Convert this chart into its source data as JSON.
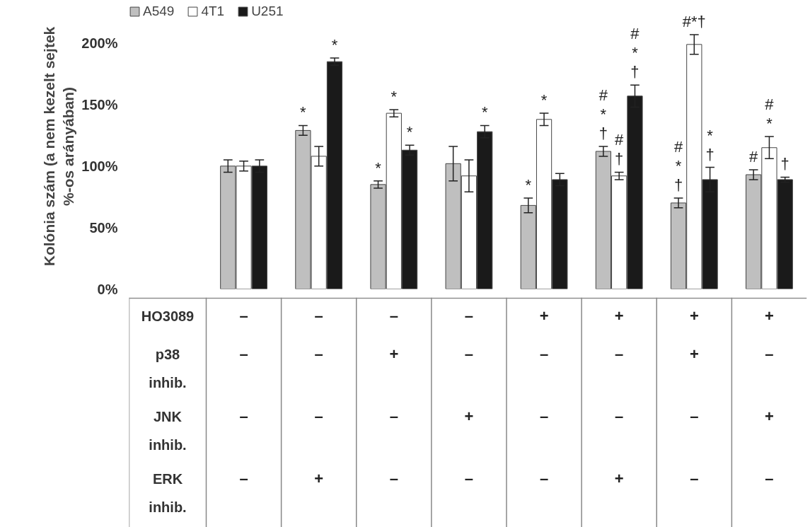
{
  "chart_data": {
    "type": "bar",
    "ylabel": "Kolónia szám (a nem kezelt sejtek\n%-os arányában)",
    "categories": [
      "–\n–\n–\n–",
      "–\n–\n–\n+",
      "–\n+\n–\n–",
      "–\n–\n+\n–",
      "+\n–\n–\n–",
      "+\n–\n–\n+",
      "+\n+\n–\n–",
      "+\n–\n+\n–"
    ],
    "annotations": [
      "HO3089",
      "p38\ninhib.",
      "JNK\ninhib.",
      "ERK\ninhib."
    ],
    "series": [
      {
        "name": "A549",
        "color": "#bfbfbf",
        "values": [
          100,
          129,
          85,
          102,
          68,
          112,
          70,
          93
        ],
        "errors": [
          5,
          4,
          3,
          14,
          6,
          4,
          4,
          4
        ],
        "value_labels": [
          null,
          "*",
          "*",
          null,
          "*",
          "#\n*\n†",
          "#\n*\n†",
          "#"
        ]
      },
      {
        "name": "4T1",
        "color": "#ffffff",
        "values": [
          100,
          108,
          143,
          92,
          138,
          92,
          199,
          115
        ],
        "errors": [
          4,
          8,
          3,
          13,
          5,
          3,
          8,
          9
        ],
        "value_labels": [
          null,
          null,
          "*",
          null,
          "*",
          "#\n†",
          "#*†",
          "#\n*"
        ]
      },
      {
        "name": "U251",
        "color": "#1a1a1a",
        "values": [
          100,
          185,
          113,
          128,
          89,
          157,
          89,
          89
        ],
        "errors": [
          5,
          3,
          4,
          5,
          5,
          9,
          10,
          2
        ],
        "value_labels": [
          null,
          "*",
          "*",
          "*",
          null,
          "#\n*\n†",
          "*\n†",
          "†"
        ]
      }
    ],
    "ylim": [
      0,
      232
    ],
    "yticks": [
      {
        "value": 0,
        "label": "0%"
      },
      {
        "value": 50,
        "label": "50%"
      },
      {
        "value": 100,
        "label": "100%"
      },
      {
        "value": 150,
        "label": "150%"
      },
      {
        "value": 200,
        "label": "200%"
      }
    ],
    "legend": "top"
  }
}
